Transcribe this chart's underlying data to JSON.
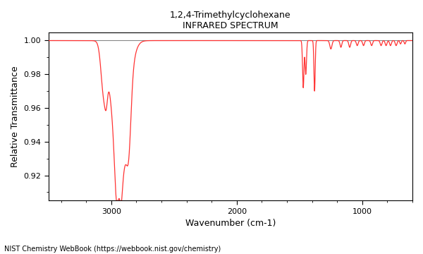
{
  "title_line1": "1,2,4-Trimethylcyclohexane",
  "title_line2": "INFRARED SPECTRUM",
  "xlabel": "Wavenumber (cm-1)",
  "ylabel": "Relative Transmittance",
  "footnote": "NIST Chemistry WebBook (https://webbook.nist.gov/chemistry)",
  "xlim": [
    3500,
    600
  ],
  "ylim": [
    0.905,
    1.005
  ],
  "yticks": [
    0.92,
    0.94,
    0.96,
    0.98,
    1.0
  ],
  "xticks": [
    3000,
    2000,
    1000
  ],
  "line_color": "#FF3333",
  "gray_line_color": "#888888",
  "background_color": "#ffffff"
}
